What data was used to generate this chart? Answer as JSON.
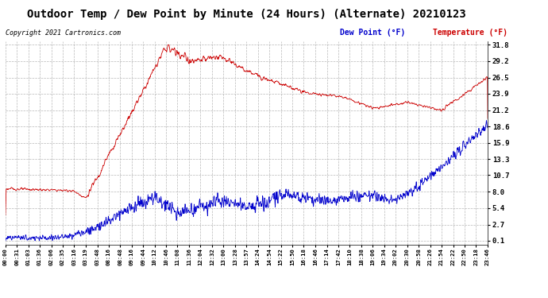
{
  "title": "Outdoor Temp / Dew Point by Minute (24 Hours) (Alternate) 20210123",
  "copyright": "Copyright 2021 Cartronics.com",
  "legend_dew": "Dew Point (°F)",
  "legend_temp": "Temperature (°F)",
  "yticks": [
    0.1,
    2.7,
    5.4,
    8.0,
    10.7,
    13.3,
    15.9,
    18.6,
    21.2,
    23.9,
    26.5,
    29.2,
    31.8
  ],
  "ymin": -0.5,
  "ymax": 32.3,
  "background_color": "#ffffff",
  "grid_color": "#b0b0b0",
  "temp_color": "#cc0000",
  "dew_color": "#0000cc",
  "title_fontsize": 10.5,
  "n_minutes": 1440
}
